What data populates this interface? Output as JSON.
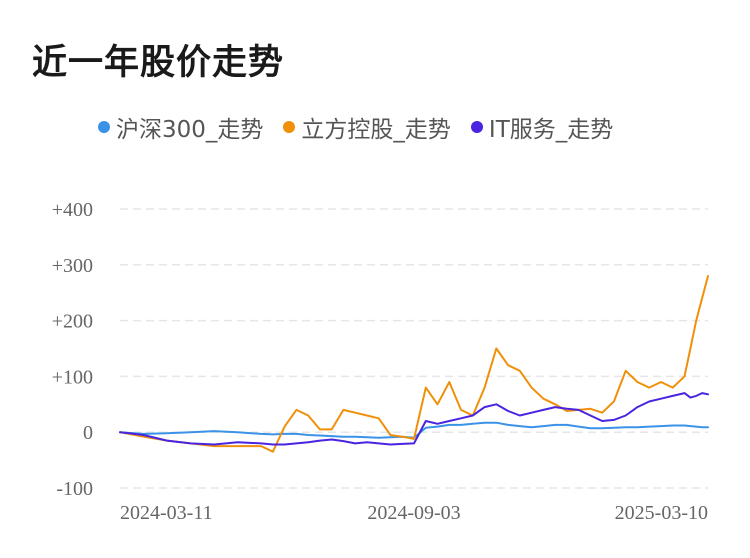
{
  "title": "近一年股价走势",
  "legend": [
    {
      "label": "沪深300_走势",
      "color": "#3b93e8"
    },
    {
      "label": "立方控股_走势",
      "color": "#f0900a"
    },
    {
      "label": "IT服务_走势",
      "color": "#4a24e0"
    }
  ],
  "chart_data": {
    "type": "line",
    "title": "近一年股价走势",
    "xlabel": "",
    "ylabel": "",
    "ylim": [
      -100,
      400
    ],
    "yticks": [
      "+400",
      "+300",
      "+200",
      "+100",
      "0",
      "-100"
    ],
    "ytick_values": [
      400,
      300,
      200,
      100,
      0,
      -100
    ],
    "xticks": [
      "2024-03-11",
      "2024-09-03",
      "2025-03-10"
    ],
    "xtick_positions": [
      0,
      50,
      100
    ],
    "grid": true,
    "legend_position": "top",
    "x": [
      0,
      4,
      8,
      12,
      16,
      20,
      24,
      26,
      28,
      30,
      32,
      34,
      36,
      38,
      40,
      42,
      44,
      46,
      48,
      50,
      52,
      54,
      56,
      58,
      60,
      62,
      64,
      66,
      68,
      70,
      72,
      74,
      76,
      78,
      80,
      82,
      84,
      86,
      88,
      90,
      92,
      94,
      96,
      97,
      98,
      99,
      100
    ],
    "series": [
      {
        "name": "沪深300_走势",
        "color": "#3b93e8",
        "values": [
          0,
          -3,
          -2,
          0,
          2,
          0,
          -3,
          -4,
          -3,
          -3,
          -5,
          -6,
          -7,
          -8,
          -8,
          -9,
          -10,
          -9,
          -8,
          -10,
          8,
          10,
          13,
          13,
          15,
          17,
          17,
          13,
          11,
          9,
          11,
          13,
          13,
          10,
          7,
          7,
          8,
          9,
          9,
          10,
          11,
          12,
          12,
          11,
          10,
          9,
          9
        ]
      },
      {
        "name": "立方控股_走势",
        "color": "#f0900a",
        "values": [
          0,
          -8,
          -15,
          -20,
          -25,
          -25,
          -25,
          -35,
          10,
          40,
          30,
          5,
          5,
          40,
          35,
          30,
          25,
          -5,
          -8,
          -12,
          80,
          50,
          90,
          40,
          30,
          80,
          150,
          120,
          110,
          80,
          60,
          50,
          38,
          40,
          42,
          35,
          55,
          110,
          90,
          80,
          90,
          80,
          100,
          150,
          200,
          240,
          280
        ]
      },
      {
        "name": "IT服务_走势",
        "color": "#4a24e0",
        "values": [
          0,
          -5,
          -15,
          -20,
          -22,
          -18,
          -20,
          -22,
          -22,
          -20,
          -18,
          -15,
          -13,
          -16,
          -20,
          -18,
          -20,
          -22,
          -21,
          -20,
          20,
          15,
          20,
          25,
          30,
          45,
          50,
          38,
          30,
          35,
          40,
          45,
          42,
          40,
          30,
          20,
          22,
          30,
          45,
          55,
          60,
          65,
          70,
          62,
          65,
          70,
          68
        ]
      }
    ]
  }
}
